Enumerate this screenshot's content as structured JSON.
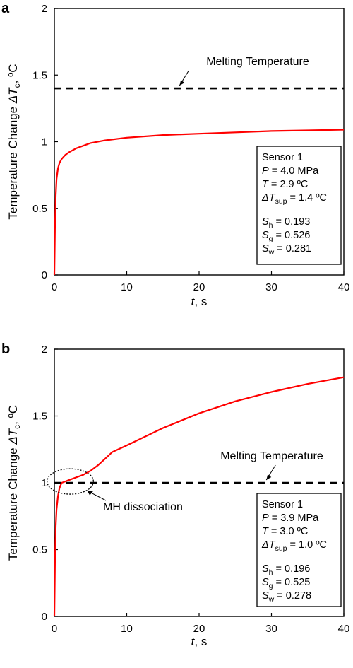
{
  "chart_data": [
    {
      "panel_label": "a",
      "type": "line",
      "xlabel": {
        "var": "t",
        "unit": ", s"
      },
      "ylabel": {
        "prefix": "Temperature Change ",
        "var": "ΔT",
        "sub": "c",
        "unit": ", ºC"
      },
      "xlim": [
        0,
        40
      ],
      "ylim": [
        0,
        2
      ],
      "x_ticks": [
        "0",
        "10",
        "20",
        "30",
        "40"
      ],
      "y_ticks": [
        "0",
        "0.5",
        "1",
        "1.5",
        "2"
      ],
      "grid": false,
      "series": [
        {
          "color": "#ff0000",
          "x": [
            0,
            0.1,
            0.2,
            0.3,
            0.5,
            0.7,
            1,
            1.5,
            2,
            3,
            4,
            5,
            7,
            10,
            15,
            20,
            25,
            30,
            35,
            40
          ],
          "y": [
            0,
            0.4,
            0.6,
            0.72,
            0.8,
            0.84,
            0.87,
            0.9,
            0.92,
            0.95,
            0.97,
            0.99,
            1.01,
            1.03,
            1.05,
            1.06,
            1.07,
            1.08,
            1.085,
            1.09
          ]
        }
      ],
      "reference_line": {
        "y": 1.4,
        "style": "dashed",
        "label": "Melting Temperature"
      },
      "annotation_arrow": {
        "x": 17,
        "y": 1.4
      },
      "legend_box": {
        "title": "Sensor 1",
        "params": [
          {
            "var": "P",
            "sub": "",
            "value": " = 4.0 MPa"
          },
          {
            "var": "T",
            "sub": "",
            "value": " = 2.9 ºC"
          },
          {
            "var": "ΔT",
            "sub": "sup",
            "value": " = 1.4 ºC"
          },
          {
            "var": "S",
            "sub": "h",
            "value": " = 0.193"
          },
          {
            "var": "S",
            "sub": "g",
            "value": " = 0.526"
          },
          {
            "var": "S",
            "sub": "w",
            "value": " = 0.281"
          }
        ]
      }
    },
    {
      "panel_label": "b",
      "type": "line",
      "xlabel": {
        "var": "t",
        "unit": ", s"
      },
      "ylabel": {
        "prefix": "Temperature Change ",
        "var": "ΔT",
        "sub": "c",
        "unit": ", ºC"
      },
      "xlim": [
        0,
        40
      ],
      "ylim": [
        0,
        2
      ],
      "x_ticks": [
        "0",
        "10",
        "20",
        "30",
        "40"
      ],
      "y_ticks": [
        "0",
        "0.5",
        "1",
        "1.5",
        "2"
      ],
      "grid": false,
      "series": [
        {
          "color": "#ff0000",
          "x": [
            0,
            0.1,
            0.2,
            0.3,
            0.5,
            0.7,
            1,
            1.5,
            2,
            3,
            4,
            5,
            6,
            7,
            8,
            10,
            15,
            20,
            25,
            30,
            35,
            40
          ],
          "y": [
            0,
            0.45,
            0.68,
            0.8,
            0.9,
            0.96,
            1.0,
            1.01,
            1.02,
            1.04,
            1.06,
            1.09,
            1.13,
            1.18,
            1.23,
            1.28,
            1.41,
            1.52,
            1.61,
            1.68,
            1.74,
            1.79
          ]
        }
      ],
      "reference_line": {
        "y": 1.0,
        "style": "dashed",
        "label": "Melting Temperature"
      },
      "annotation_arrow": {
        "x": 29,
        "y": 1.0
      },
      "dissociation_ellipse": {
        "cx": 2.2,
        "cy": 1.01,
        "rx": 3.2,
        "ry": 0.095
      },
      "dissociation_label": {
        "text": "MH dissociation",
        "color": "#ff0000"
      },
      "legend_box": {
        "title": "Sensor 1",
        "params": [
          {
            "var": "P",
            "sub": "",
            "value": " = 3.9 MPa"
          },
          {
            "var": "T",
            "sub": "",
            "value": " = 3.0 ºC"
          },
          {
            "var": "ΔT",
            "sub": "sup",
            "value": " = 1.0 ºC"
          },
          {
            "var": "S",
            "sub": "h",
            "value": " = 0.196"
          },
          {
            "var": "S",
            "sub": "g",
            "value": " = 0.525"
          },
          {
            "var": "S",
            "sub": "w",
            "value": " = 0.278"
          }
        ]
      }
    }
  ]
}
